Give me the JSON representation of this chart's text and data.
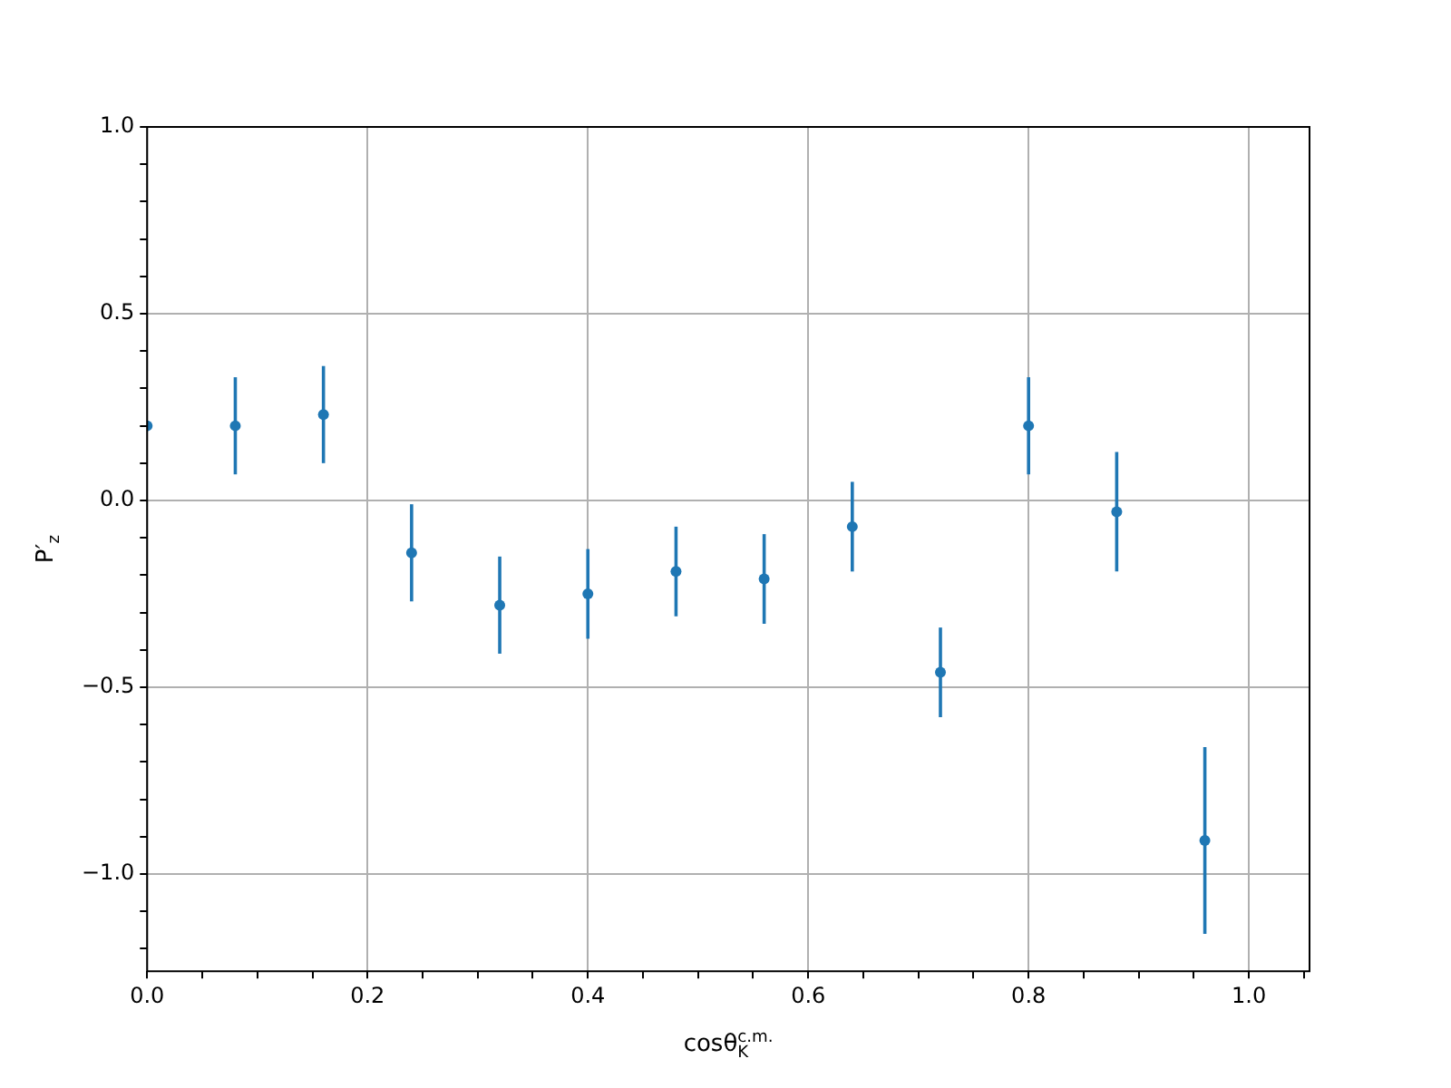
{
  "chart_data": {
    "type": "scatter",
    "xlabel": "cosθ$_{K}$$^{c.m.}$",
    "ylabel": "P′$_{z}$",
    "x": [
      0,
      0.08,
      0.16,
      0.24,
      0.32,
      0.4,
      0.48,
      0.56,
      0.64,
      0.72,
      0.8,
      0.88,
      0.96
    ],
    "series": [
      {
        "color": "#1f77b4",
        "values": [
          0.2,
          0.2,
          0.23,
          -0.14,
          -0.28,
          -0.25,
          -0.19,
          -0.21,
          -0.07,
          -0.46,
          0.2,
          -0.03,
          -0.91
        ],
        "errors": [
          null,
          0.13,
          0.13,
          0.13,
          0.13,
          0.12,
          0.12,
          0.12,
          0.12,
          0.12,
          0.13,
          0.16,
          0.25
        ]
      }
    ],
    "marker": "circle",
    "grid": true,
    "xlim": [
      0,
      1.055
    ],
    "ylim": [
      -1.26,
      1.0
    ],
    "xticks": [
      {
        "value": 0,
        "label": "0.0"
      },
      {
        "value": 0.05,
        "label": null
      },
      {
        "value": 0.1,
        "label": null
      },
      {
        "value": 0.15,
        "label": null
      },
      {
        "value": 0.2,
        "label": "0.2"
      },
      {
        "value": 0.25,
        "label": null
      },
      {
        "value": 0.3,
        "label": null
      },
      {
        "value": 0.35,
        "label": null
      },
      {
        "value": 0.4,
        "label": "0.4"
      },
      {
        "value": 0.45,
        "label": null
      },
      {
        "value": 0.5,
        "label": null
      },
      {
        "value": 0.55,
        "label": null
      },
      {
        "value": 0.6,
        "label": "0.6"
      },
      {
        "value": 0.65,
        "label": null
      },
      {
        "value": 0.7,
        "label": null
      },
      {
        "value": 0.75,
        "label": null
      },
      {
        "value": 0.8,
        "label": "0.8"
      },
      {
        "value": 0.85,
        "label": null
      },
      {
        "value": 0.9,
        "label": null
      },
      {
        "value": 0.95,
        "label": null
      },
      {
        "value": 1,
        "label": "1.0"
      },
      {
        "value": 1.05,
        "label": null
      }
    ],
    "yticks": [
      {
        "value": -1.2,
        "label": null
      },
      {
        "value": -1.1,
        "label": null
      },
      {
        "value": -1,
        "label": "−1.0"
      },
      {
        "value": -0.9,
        "label": null
      },
      {
        "value": -0.8,
        "label": null
      },
      {
        "value": -0.7,
        "label": null
      },
      {
        "value": -0.6,
        "label": null
      },
      {
        "value": -0.5,
        "label": "−0.5"
      },
      {
        "value": -0.4,
        "label": null
      },
      {
        "value": -0.3,
        "label": null
      },
      {
        "value": -0.2,
        "label": null
      },
      {
        "value": -0.1,
        "label": null
      },
      {
        "value": 0,
        "label": "0.0"
      },
      {
        "value": 0.1,
        "label": null
      },
      {
        "value": 0.2,
        "label": null
      },
      {
        "value": 0.3,
        "label": null
      },
      {
        "value": 0.4,
        "label": null
      },
      {
        "value": 0.5,
        "label": "0.5"
      },
      {
        "value": 0.6,
        "label": null
      },
      {
        "value": 0.7,
        "label": null
      },
      {
        "value": 0.8,
        "label": null
      },
      {
        "value": 0.9,
        "label": null
      },
      {
        "value": 1,
        "label": "1.0"
      }
    ]
  }
}
